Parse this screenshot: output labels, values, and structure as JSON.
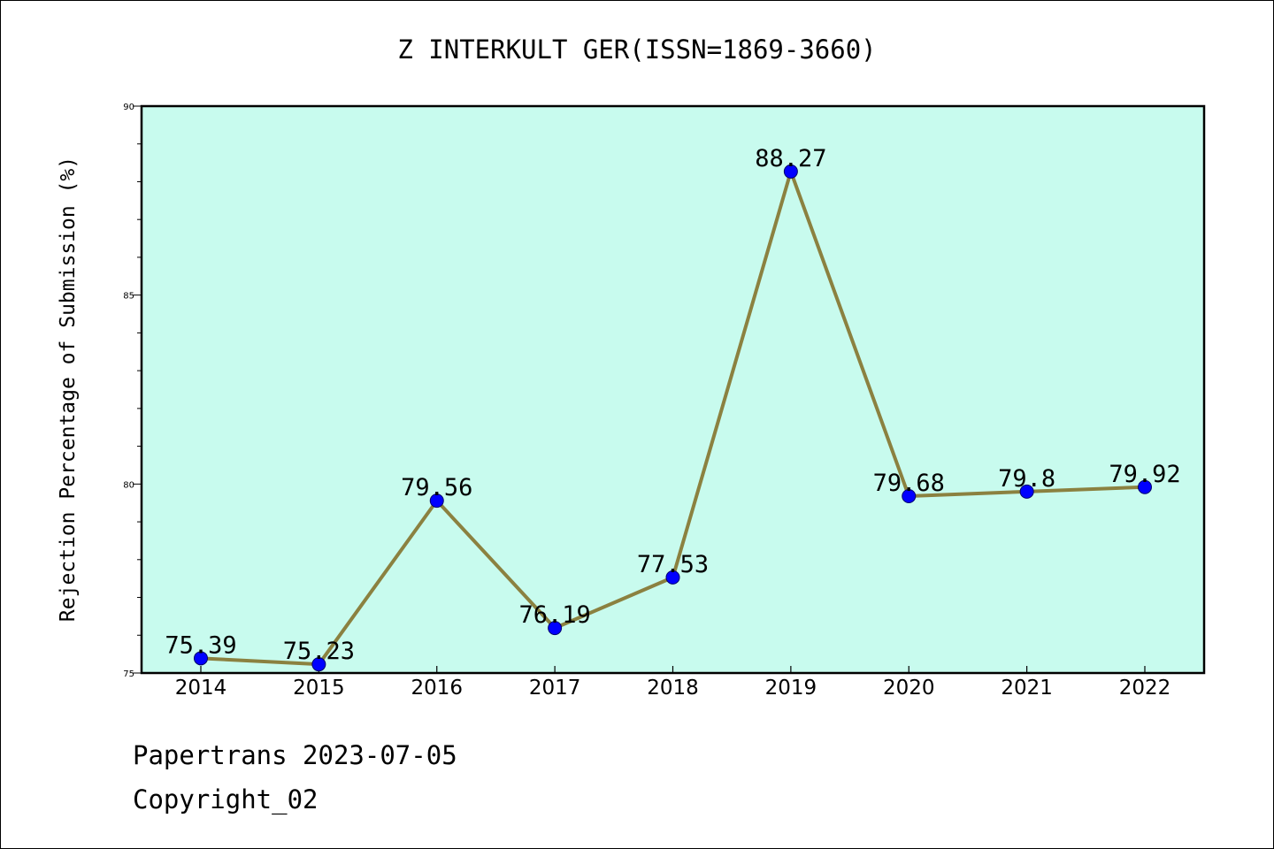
{
  "chart_data": {
    "type": "line",
    "title": "Z INTERKULT GER(ISSN=1869-3660)",
    "xlabel": "",
    "ylabel": "Rejection Percentage of Submission (%)",
    "categories": [
      "2014",
      "2015",
      "2016",
      "2017",
      "2018",
      "2019",
      "2020",
      "2021",
      "2022"
    ],
    "values": [
      75.39,
      75.23,
      79.56,
      76.19,
      77.53,
      88.27,
      79.68,
      79.8,
      79.92
    ],
    "data_labels": [
      "75.39",
      "75.23",
      "79.56",
      "76.19",
      "77.53",
      "88.27",
      "79.68",
      "79.8",
      "79.92"
    ],
    "ylim": [
      75,
      90
    ],
    "yticks": [
      "75",
      "80",
      "85",
      "90"
    ],
    "grid": false,
    "colors": {
      "plot_background": "#c8fbee",
      "line": "#8b8140",
      "marker": "#0000ff",
      "frame": "#000000"
    }
  },
  "footer": {
    "line1": "Papertrans 2023-07-05",
    "line2": "Copyright_02"
  }
}
